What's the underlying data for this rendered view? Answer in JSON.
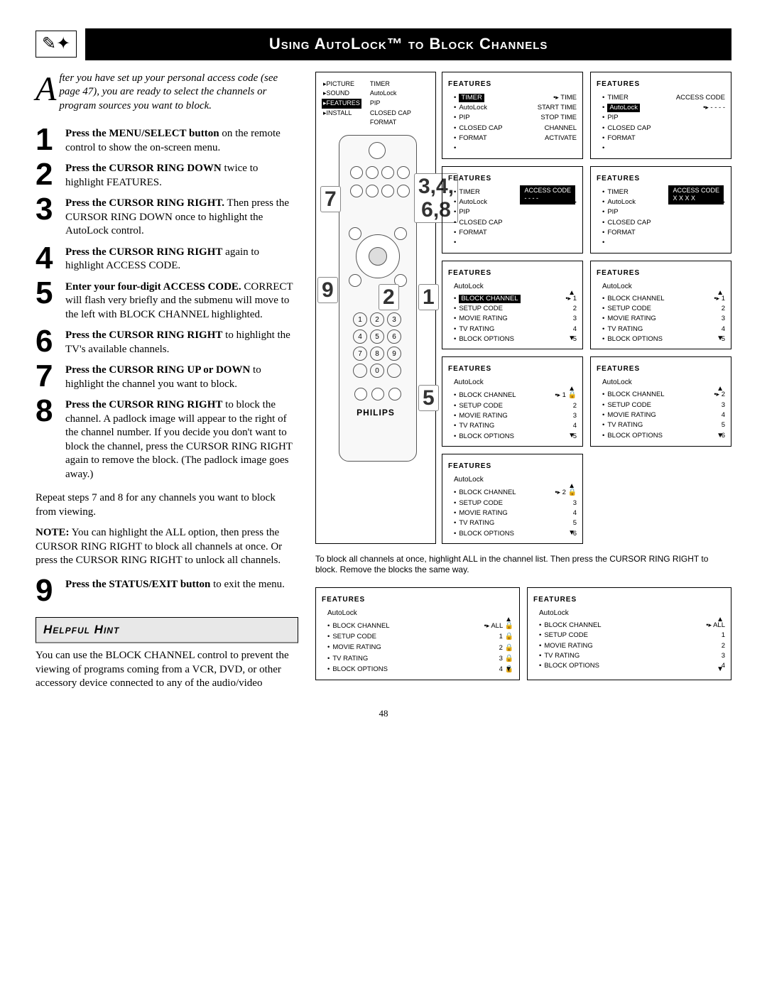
{
  "page_number": "48",
  "title": "Using AutoLock™ to Block Channels",
  "intro": {
    "dropcap": "A",
    "rest": "fter you have set up your personal access code (see page 47), you are ready to select the channels or program sources you want to block."
  },
  "steps": [
    {
      "num": "1",
      "bold": "Press the MENU/SELECT button",
      "rest": " on the remote control to show the on-screen menu."
    },
    {
      "num": "2",
      "bold": "Press the CURSOR RING DOWN",
      "rest": " twice to highlight FEATURES."
    },
    {
      "num": "3",
      "bold": "Press the CURSOR RING RIGHT.",
      "rest": " Then press the CURSOR RING DOWN once to highlight the AutoLock control."
    },
    {
      "num": "4",
      "bold": "Press the CURSOR RING RIGHT",
      "rest": " again to highlight ACCESS CODE."
    },
    {
      "num": "5",
      "bold": "Enter your four-digit ACCESS CODE.",
      "rest": " CORRECT will flash very briefly and the submenu will move to the left with BLOCK CHANNEL highlighted."
    },
    {
      "num": "6",
      "bold": "Press the CURSOR RING RIGHT",
      "rest": " to highlight the TV's available channels."
    },
    {
      "num": "7",
      "bold": "Press the CURSOR RING UP or DOWN",
      "rest": " to highlight the channel you want to block."
    },
    {
      "num": "8",
      "bold": "Press the CURSOR RING RIGHT",
      "rest": " to block the channel. A padlock image will appear to the right of the channel number. If you decide you don't want to block the channel, press the CURSOR RING RIGHT again to remove the block. (The padlock image goes away.)"
    },
    {
      "num": "9",
      "bold": "Press the STATUS/EXIT button",
      "rest": " to exit the menu."
    }
  ],
  "repeat_note": "Repeat steps 7 and 8 for any channels you want to block from viewing.",
  "note": {
    "label": "NOTE:",
    "text": " You can highlight the ALL option, then press the CURSOR RING RIGHT to block all channels at once. Or press the CURSOR RING RIGHT to unlock all channels."
  },
  "hint": {
    "header": "Helpful Hint",
    "body": "You can use the BLOCK CHANNEL control to prevent the viewing of programs coming from a VCR, DVD, or other accessory device connected to any of the audio/video"
  },
  "remote": {
    "left_menu": [
      "PICTURE",
      "SOUND",
      "FEATURES",
      "INSTALL"
    ],
    "left_hl": "FEATURES",
    "right_menu": [
      "TIMER",
      "AutoLock",
      "PIP",
      "CLOSED CAP",
      "FORMAT"
    ],
    "brand": "PHILIPS",
    "callouts": {
      "c34": "3,4,\n6,8",
      "c7": "7",
      "c9": "9",
      "c2": "2",
      "c1": "1",
      "c5": "5"
    },
    "keys": [
      "1",
      "2",
      "3",
      "4",
      "5",
      "6",
      "7",
      "8",
      "9",
      "",
      "0",
      ""
    ]
  },
  "screens": [
    {
      "title": "FEATURES",
      "hl_item": "TIMER",
      "items": [
        [
          "TIMER",
          "TIME"
        ],
        [
          "AutoLock",
          "START TIME"
        ],
        [
          "PIP",
          "STOP TIME"
        ],
        [
          "CLOSED CAP",
          "CHANNEL"
        ],
        [
          "FORMAT",
          "ACTIVATE"
        ],
        [
          "",
          ""
        ]
      ],
      "pointer_row": 0
    },
    {
      "title": "FEATURES",
      "hl_item": "AutoLock",
      "items": [
        [
          "TIMER",
          "ACCESS CODE"
        ],
        [
          "AutoLock",
          "- - - -"
        ],
        [
          "PIP",
          ""
        ],
        [
          "CLOSED CAP",
          ""
        ],
        [
          "FORMAT",
          ""
        ],
        [
          "",
          ""
        ]
      ],
      "pointer_row": 1
    },
    {
      "title": "FEATURES",
      "right_box": "ACCESS CODE\n- - - -",
      "items": [
        [
          "TIMER",
          ""
        ],
        [
          "AutoLock",
          ""
        ],
        [
          "PIP",
          ""
        ],
        [
          "CLOSED CAP",
          ""
        ],
        [
          "FORMAT",
          ""
        ],
        [
          "",
          ""
        ]
      ],
      "pointer_row": 1
    },
    {
      "title": "FEATURES",
      "right_box": "ACCESS CODE\nX X X X",
      "items": [
        [
          "TIMER",
          ""
        ],
        [
          "AutoLock",
          ""
        ],
        [
          "PIP",
          ""
        ],
        [
          "CLOSED CAP",
          ""
        ],
        [
          "FORMAT",
          ""
        ],
        [
          "",
          ""
        ]
      ],
      "pointer_row": 1
    },
    {
      "title": "FEATURES",
      "sub": "AutoLock",
      "hl_item": "BLOCK CHANNEL",
      "items": [
        [
          "BLOCK CHANNEL",
          "1"
        ],
        [
          "SETUP CODE",
          "2"
        ],
        [
          "MOVIE RATING",
          "3"
        ],
        [
          "TV RATING",
          "4"
        ],
        [
          "BLOCK OPTIONS",
          "5"
        ]
      ],
      "pointer_row": 0,
      "scroll": true
    },
    {
      "title": "FEATURES",
      "sub": "AutoLock",
      "items": [
        [
          "BLOCK CHANNEL",
          "1"
        ],
        [
          "SETUP CODE",
          "2"
        ],
        [
          "MOVIE RATING",
          "3"
        ],
        [
          "TV RATING",
          "4"
        ],
        [
          "BLOCK OPTIONS",
          "5"
        ]
      ],
      "pointer_row": 0,
      "scroll": true
    },
    {
      "title": "FEATURES",
      "sub": "AutoLock",
      "items": [
        [
          "BLOCK CHANNEL",
          "1"
        ],
        [
          "SETUP CODE",
          "2"
        ],
        [
          "MOVIE RATING",
          "3"
        ],
        [
          "TV RATING",
          "4"
        ],
        [
          "BLOCK OPTIONS",
          "5"
        ]
      ],
      "pointer_row": 0,
      "lock_rows": [
        0
      ],
      "scroll": true
    },
    {
      "title": "FEATURES",
      "sub": "AutoLock",
      "items": [
        [
          "BLOCK CHANNEL",
          "2"
        ],
        [
          "SETUP CODE",
          "3"
        ],
        [
          "MOVIE RATING",
          "4"
        ],
        [
          "TV RATING",
          "5"
        ],
        [
          "BLOCK OPTIONS",
          "6"
        ]
      ],
      "pointer_row": 0,
      "scroll": true
    },
    {
      "title": "FEATURES",
      "sub": "AutoLock",
      "items": [
        [
          "BLOCK CHANNEL",
          "2"
        ],
        [
          "SETUP CODE",
          "3"
        ],
        [
          "MOVIE RATING",
          "4"
        ],
        [
          "TV RATING",
          "5"
        ],
        [
          "BLOCK OPTIONS",
          "6"
        ]
      ],
      "pointer_row": 0,
      "lock_rows": [
        0
      ],
      "scroll": true
    }
  ],
  "bottom_note": "To block all channels at once, highlight ALL in the channel list. Then press the CURSOR RING RIGHT to block. Remove the blocks the same way.",
  "lower_screens": [
    {
      "title": "FEATURES",
      "sub": "AutoLock",
      "items": [
        [
          "BLOCK CHANNEL",
          "ALL"
        ],
        [
          "SETUP CODE",
          "1"
        ],
        [
          "MOVIE RATING",
          "2"
        ],
        [
          "TV RATING",
          "3"
        ],
        [
          "BLOCK OPTIONS",
          "4"
        ]
      ],
      "pointer_row": 0,
      "lock_rows": [
        0,
        1,
        2,
        3,
        4
      ],
      "scroll": true
    },
    {
      "title": "FEATURES",
      "sub": "AutoLock",
      "items": [
        [
          "BLOCK CHANNEL",
          "ALL"
        ],
        [
          "SETUP CODE",
          "1"
        ],
        [
          "MOVIE RATING",
          "2"
        ],
        [
          "TV RATING",
          "3"
        ],
        [
          "BLOCK OPTIONS",
          "4"
        ]
      ],
      "pointer_row": 0,
      "scroll": true
    }
  ]
}
